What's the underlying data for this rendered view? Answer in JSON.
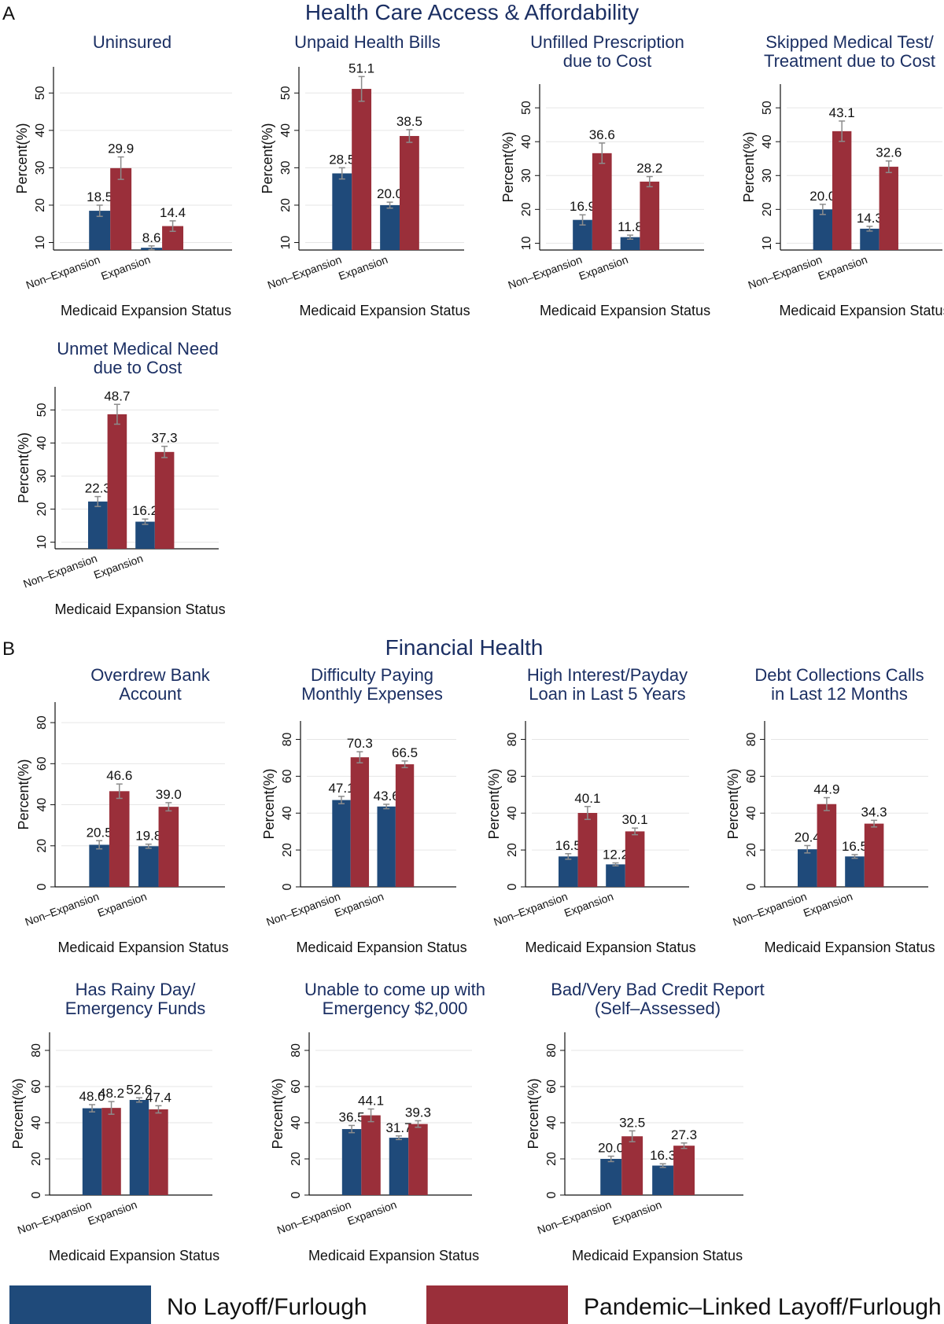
{
  "colors": {
    "no_layoff": "#1f4a7a",
    "layoff": "#9a2f3a",
    "title": "#1b2f63",
    "error": "#8c8c8c",
    "grid": "#e6e6e6"
  },
  "sections": [
    {
      "letter": "A",
      "title": "Health Care Access & Affordability"
    },
    {
      "letter": "B",
      "title": "Financial Health"
    }
  ],
  "legend": [
    {
      "label": "No Layoff/Furlough",
      "color": "#1f4a7a"
    },
    {
      "label": "Pandemic–Linked Layoff/Furlough",
      "color": "#9a2f3a"
    }
  ],
  "chart_data": [
    {
      "type": "bar",
      "section": "A",
      "title": [
        "Uninsured"
      ],
      "xlabel": "Medicaid Expansion Status",
      "ylabel": "Percent(%)",
      "ylim": [
        8,
        57
      ],
      "yticks": [
        10,
        20,
        30,
        40,
        50
      ],
      "categories": [
        "Non–Expansion",
        "Expansion"
      ],
      "series": [
        {
          "name": "No Layoff/Furlough",
          "values": [
            18.5,
            8.6
          ],
          "err": [
            1.5,
            0.5
          ]
        },
        {
          "name": "Pandemic–Linked Layoff/Furlough",
          "values": [
            29.9,
            14.4
          ],
          "err": [
            3.0,
            1.4
          ]
        }
      ]
    },
    {
      "type": "bar",
      "section": "A",
      "title": [
        "Unpaid Health Bills"
      ],
      "xlabel": "Medicaid Expansion Status",
      "ylabel": "Percent(%)",
      "ylim": [
        8,
        57
      ],
      "yticks": [
        10,
        20,
        30,
        40,
        50
      ],
      "categories": [
        "Non–Expansion",
        "Expansion"
      ],
      "series": [
        {
          "name": "No Layoff/Furlough",
          "values": [
            28.5,
            20.0
          ],
          "err": [
            1.5,
            0.8
          ]
        },
        {
          "name": "Pandemic–Linked Layoff/Furlough",
          "values": [
            51.1,
            38.5
          ],
          "err": [
            3.3,
            1.7
          ]
        }
      ]
    },
    {
      "type": "bar",
      "section": "A",
      "title": [
        "Unfilled Prescription",
        "due to Cost"
      ],
      "xlabel": "Medicaid Expansion Status",
      "ylabel": "Percent(%)",
      "ylim": [
        8,
        57
      ],
      "yticks": [
        10,
        20,
        30,
        40,
        50
      ],
      "categories": [
        "Non–Expansion",
        "Expansion"
      ],
      "series": [
        {
          "name": "No Layoff/Furlough",
          "values": [
            16.9,
            11.8
          ],
          "err": [
            1.5,
            0.6
          ]
        },
        {
          "name": "Pandemic–Linked Layoff/Furlough",
          "values": [
            36.6,
            28.2
          ],
          "err": [
            3.0,
            1.5
          ]
        }
      ]
    },
    {
      "type": "bar",
      "section": "A",
      "title": [
        "Skipped Medical Test/",
        "Treatment due to Cost"
      ],
      "xlabel": "Medicaid Expansion Status",
      "ylabel": "Percent(%)",
      "ylim": [
        8,
        57
      ],
      "yticks": [
        10,
        20,
        30,
        40,
        50
      ],
      "categories": [
        "Non–Expansion",
        "Expansion"
      ],
      "series": [
        {
          "name": "No Layoff/Furlough",
          "values": [
            20.0,
            14.3
          ],
          "err": [
            1.5,
            0.7
          ]
        },
        {
          "name": "Pandemic–Linked Layoff/Furlough",
          "values": [
            43.1,
            32.6
          ],
          "err": [
            3.0,
            1.7
          ]
        }
      ]
    },
    {
      "type": "bar",
      "section": "A",
      "title": [
        "Unmet Medical Need",
        "due to Cost"
      ],
      "xlabel": "Medicaid Expansion Status",
      "ylabel": "Percent(%)",
      "ylim": [
        8,
        57
      ],
      "yticks": [
        10,
        20,
        30,
        40,
        50
      ],
      "categories": [
        "Non–Expansion",
        "Expansion"
      ],
      "series": [
        {
          "name": "No Layoff/Furlough",
          "values": [
            22.3,
            16.2
          ],
          "err": [
            1.5,
            0.8
          ]
        },
        {
          "name": "Pandemic–Linked Layoff/Furlough",
          "values": [
            48.7,
            37.3
          ],
          "err": [
            3.0,
            1.7
          ]
        }
      ]
    },
    {
      "type": "bar",
      "section": "B",
      "title": [
        "Overdrew Bank",
        "Account"
      ],
      "xlabel": "Medicaid Expansion Status",
      "ylabel": "Percent(%)",
      "ylim": [
        0,
        90
      ],
      "yticks": [
        0,
        20,
        40,
        60,
        80
      ],
      "categories": [
        "Non–Expansion",
        "Expansion"
      ],
      "series": [
        {
          "name": "No Layoff/Furlough",
          "values": [
            20.5,
            19.8
          ],
          "err": [
            2.0,
            1.0
          ]
        },
        {
          "name": "Pandemic–Linked Layoff/Furlough",
          "values": [
            46.6,
            39.0
          ],
          "err": [
            3.5,
            2.0
          ]
        }
      ]
    },
    {
      "type": "bar",
      "section": "B",
      "title": [
        "Difficulty Paying",
        "Monthly Expenses"
      ],
      "xlabel": "Medicaid Expansion Status",
      "ylabel": "Percent(%)",
      "ylim": [
        0,
        90
      ],
      "yticks": [
        0,
        20,
        40,
        60,
        80
      ],
      "categories": [
        "Non–Expansion",
        "Expansion"
      ],
      "series": [
        {
          "name": "No Layoff/Furlough",
          "values": [
            47.1,
            43.6
          ],
          "err": [
            2.0,
            1.2
          ]
        },
        {
          "name": "Pandemic–Linked Layoff/Furlough",
          "values": [
            70.3,
            66.5
          ],
          "err": [
            3.0,
            1.8
          ]
        }
      ]
    },
    {
      "type": "bar",
      "section": "B",
      "title": [
        "High Interest/Payday",
        "Loan in Last 5 Years"
      ],
      "xlabel": "Medicaid Expansion Status",
      "ylabel": "Percent(%)",
      "ylim": [
        0,
        90
      ],
      "yticks": [
        0,
        20,
        40,
        60,
        80
      ],
      "categories": [
        "Non–Expansion",
        "Expansion"
      ],
      "series": [
        {
          "name": "No Layoff/Furlough",
          "values": [
            16.5,
            12.2
          ],
          "err": [
            1.5,
            0.8
          ]
        },
        {
          "name": "Pandemic–Linked Layoff/Furlough",
          "values": [
            40.1,
            30.1
          ],
          "err": [
            3.5,
            1.8
          ]
        }
      ]
    },
    {
      "type": "bar",
      "section": "B",
      "title": [
        "Debt Collections Calls",
        "in Last 12 Months"
      ],
      "xlabel": "Medicaid Expansion Status",
      "ylabel": "Percent(%)",
      "ylim": [
        0,
        90
      ],
      "yticks": [
        0,
        20,
        40,
        60,
        80
      ],
      "categories": [
        "Non–Expansion",
        "Expansion"
      ],
      "series": [
        {
          "name": "No Layoff/Furlough",
          "values": [
            20.4,
            16.5
          ],
          "err": [
            2.0,
            1.0
          ]
        },
        {
          "name": "Pandemic–Linked Layoff/Furlough",
          "values": [
            44.9,
            34.3
          ],
          "err": [
            3.5,
            1.8
          ]
        }
      ]
    },
    {
      "type": "bar",
      "section": "B",
      "title": [
        "Has Rainy Day/",
        "Emergency Funds"
      ],
      "xlabel": "Medicaid Expansion Status",
      "ylabel": "Percent(%)",
      "ylim": [
        0,
        90
      ],
      "yticks": [
        0,
        20,
        40,
        60,
        80
      ],
      "categories": [
        "Non–Expansion",
        "Expansion"
      ],
      "series": [
        {
          "name": "No Layoff/Furlough",
          "values": [
            48.0,
            52.6
          ],
          "err": [
            2.0,
            1.2
          ]
        },
        {
          "name": "Pandemic–Linked Layoff/Furlough",
          "values": [
            48.2,
            47.4
          ],
          "err": [
            3.5,
            2.0
          ]
        }
      ]
    },
    {
      "type": "bar",
      "section": "B",
      "title": [
        "Unable to come up with",
        "Emergency $2,000"
      ],
      "xlabel": "Medicaid Expansion Status",
      "ylabel": "Percent(%)",
      "ylim": [
        0,
        90
      ],
      "yticks": [
        0,
        20,
        40,
        60,
        80
      ],
      "categories": [
        "Non–Expansion",
        "Expansion"
      ],
      "series": [
        {
          "name": "No Layoff/Furlough",
          "values": [
            36.5,
            31.7
          ],
          "err": [
            2.0,
            1.0
          ]
        },
        {
          "name": "Pandemic–Linked Layoff/Furlough",
          "values": [
            44.1,
            39.3
          ],
          "err": [
            3.5,
            1.8
          ]
        }
      ]
    },
    {
      "type": "bar",
      "section": "B",
      "title": [
        "Bad/Very Bad Credit Report",
        "(Self–Assessed)"
      ],
      "xlabel": "Medicaid Expansion Status",
      "ylabel": "Percent(%)",
      "ylim": [
        0,
        90
      ],
      "yticks": [
        0,
        20,
        40,
        60,
        80
      ],
      "categories": [
        "Non–Expansion",
        "Expansion"
      ],
      "series": [
        {
          "name": "No Layoff/Furlough",
          "values": [
            20.0,
            16.3
          ],
          "err": [
            1.5,
            1.0
          ]
        },
        {
          "name": "Pandemic–Linked Layoff/Furlough",
          "values": [
            32.5,
            27.3
          ],
          "err": [
            3.0,
            1.5
          ]
        }
      ]
    }
  ]
}
